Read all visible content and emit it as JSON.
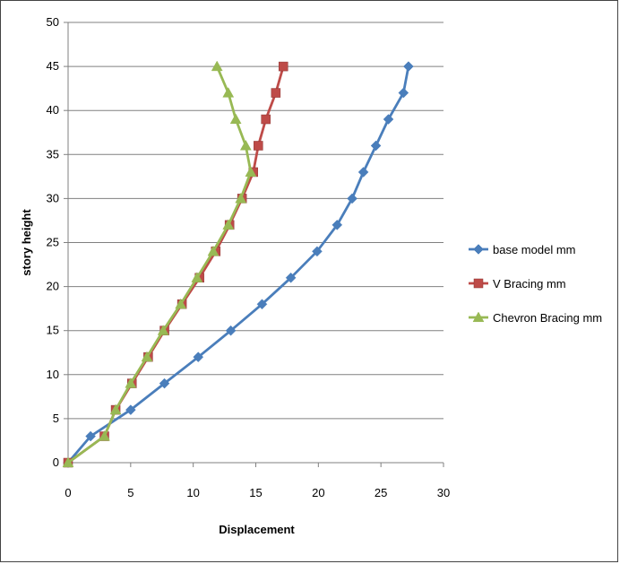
{
  "chart_data": {
    "type": "line",
    "title": "",
    "xlabel": "Displacement",
    "ylabel": "story height",
    "xlim": [
      0,
      30
    ],
    "ylim": [
      0,
      50
    ],
    "xticks": [
      0,
      5,
      10,
      15,
      20,
      25,
      30
    ],
    "yticks": [
      0,
      5,
      10,
      15,
      20,
      25,
      30,
      35,
      40,
      45,
      50
    ],
    "grid": "horizontal",
    "legend_position": "right",
    "series": [
      {
        "name": "base model mm",
        "color": "#4A7EBB",
        "marker": "diamond",
        "points": [
          [
            0,
            0
          ],
          [
            1.8,
            3
          ],
          [
            5,
            6
          ],
          [
            7.7,
            9
          ],
          [
            10.4,
            12
          ],
          [
            13,
            15
          ],
          [
            15.5,
            18
          ],
          [
            17.8,
            21
          ],
          [
            19.9,
            24
          ],
          [
            21.5,
            27
          ],
          [
            22.7,
            30
          ],
          [
            23.6,
            33
          ],
          [
            24.6,
            36
          ],
          [
            25.6,
            39
          ],
          [
            26.8,
            42
          ],
          [
            27.2,
            45
          ]
        ]
      },
      {
        "name": "V Bracing mm",
        "color": "#BE4B48",
        "marker": "square",
        "points": [
          [
            0,
            0
          ],
          [
            2.9,
            3
          ],
          [
            3.8,
            6
          ],
          [
            5.1,
            9
          ],
          [
            6.4,
            12
          ],
          [
            7.7,
            15
          ],
          [
            9.1,
            18
          ],
          [
            10.5,
            21
          ],
          [
            11.8,
            24
          ],
          [
            12.9,
            27
          ],
          [
            13.9,
            30
          ],
          [
            14.8,
            33
          ],
          [
            15.2,
            36
          ],
          [
            15.8,
            39
          ],
          [
            16.6,
            42
          ],
          [
            17.2,
            45
          ]
        ]
      },
      {
        "name": "Chevron Bracing mm",
        "color": "#98B954",
        "marker": "triangle",
        "points": [
          [
            0,
            0
          ],
          [
            2.9,
            3
          ],
          [
            3.8,
            6
          ],
          [
            5,
            9
          ],
          [
            6.3,
            12
          ],
          [
            7.6,
            15
          ],
          [
            9,
            18
          ],
          [
            10.3,
            21
          ],
          [
            11.6,
            24
          ],
          [
            12.8,
            27
          ],
          [
            13.8,
            30
          ],
          [
            14.6,
            33
          ],
          [
            14.2,
            36
          ],
          [
            13.4,
            39
          ],
          [
            12.8,
            42
          ],
          [
            11.9,
            45
          ]
        ]
      }
    ]
  }
}
